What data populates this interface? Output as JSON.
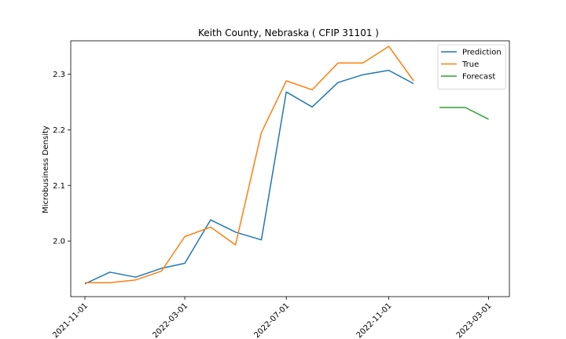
{
  "chart_data": {
    "type": "line",
    "title": "Keith County, Nebraska ( CFIP 31101 )",
    "xlabel": "",
    "ylabel": "Microbusiness Density",
    "x_ticks": [
      "2021-11-01",
      "2022-03-01",
      "2022-07-01",
      "2022-11-01",
      "2023-03-01"
    ],
    "y_ticks": [
      "2.0",
      "2.1",
      "2.2",
      "2.3"
    ],
    "ylim": [
      1.9,
      2.36
    ],
    "xlim": [
      "2021-10-15",
      "2023-03-26"
    ],
    "grid": false,
    "legend_position": "top-right",
    "series": [
      {
        "name": "Prediction",
        "color": "#1f77b4",
        "x": [
          "2021-11-01",
          "2021-12-01",
          "2022-01-01",
          "2022-02-01",
          "2022-03-01",
          "2022-04-01",
          "2022-05-01",
          "2022-06-01",
          "2022-07-01",
          "2022-08-01",
          "2022-09-01",
          "2022-10-01",
          "2022-11-01",
          "2022-12-01"
        ],
        "values": [
          1.923,
          1.944,
          1.935,
          1.951,
          1.96,
          2.038,
          2.016,
          2.002,
          2.268,
          2.241,
          2.285,
          2.299,
          2.307,
          2.283
        ]
      },
      {
        "name": "True",
        "color": "#ff7f0e",
        "x": [
          "2021-11-01",
          "2021-12-01",
          "2022-01-01",
          "2022-02-01",
          "2022-03-01",
          "2022-04-01",
          "2022-05-01",
          "2022-06-01",
          "2022-07-01",
          "2022-08-01",
          "2022-09-01",
          "2022-10-01",
          "2022-11-01",
          "2022-12-01"
        ],
        "values": [
          1.925,
          1.925,
          1.93,
          1.946,
          2.008,
          2.025,
          1.993,
          2.195,
          2.288,
          2.272,
          2.32,
          2.32,
          2.35,
          2.288
        ]
      },
      {
        "name": "Forecast",
        "color": "#2ca02c",
        "x": [
          "2023-01-01",
          "2023-02-01",
          "2023-03-01"
        ],
        "values": [
          2.24,
          2.24,
          2.219
        ]
      }
    ]
  }
}
